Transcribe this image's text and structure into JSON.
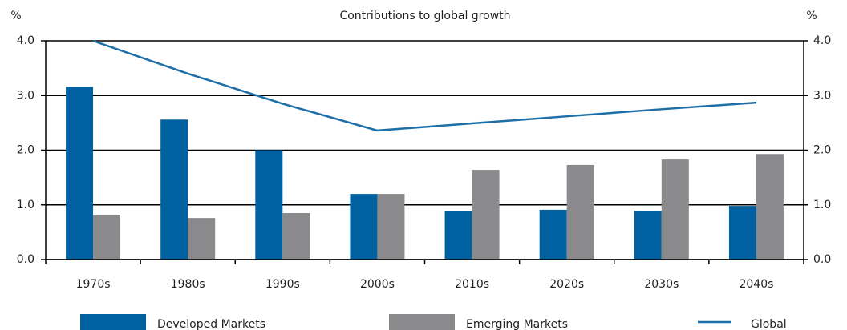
{
  "chart_data": {
    "type": "bar",
    "title": "Contributions to global growth",
    "y_label": "%",
    "y2_label": "%",
    "categories": [
      "1970s",
      "1980s",
      "1990s",
      "2000s",
      "2010s",
      "2020s",
      "2030s",
      "2040s"
    ],
    "series": [
      {
        "name": "Developed Markets",
        "type": "bar",
        "color": "#0060a0",
        "values": [
          3.16,
          2.56,
          2.0,
          1.2,
          0.88,
          0.91,
          0.89,
          0.98
        ]
      },
      {
        "name": "Emerging Markets",
        "type": "bar",
        "color": "#8a8a8c",
        "values": [
          0.82,
          0.76,
          0.85,
          1.2,
          1.64,
          1.73,
          1.83,
          1.93
        ]
      },
      {
        "name": "Global",
        "type": "line",
        "axis": "y2",
        "color": "#1e6fa8",
        "values": [
          4.0,
          3.4,
          2.85,
          2.36,
          2.49,
          2.62,
          2.75,
          2.87
        ]
      }
    ],
    "ylim": [
      0,
      4
    ],
    "yticks": [
      {
        "value": 0,
        "label": "0.0"
      },
      {
        "value": 1,
        "label": "1.0"
      },
      {
        "value": 2,
        "label": "2.0"
      },
      {
        "value": 3,
        "label": "3.0"
      },
      {
        "value": 4,
        "label": "4.0"
      }
    ],
    "y2lim": [
      0,
      4
    ],
    "y2ticks": [
      {
        "value": 0,
        "label": "0.0"
      },
      {
        "value": 1,
        "label": "1.0"
      },
      {
        "value": 2,
        "label": "2.0"
      },
      {
        "value": 3,
        "label": "3.0"
      },
      {
        "value": 4,
        "label": "4.0"
      }
    ],
    "grid": true,
    "legend": "bottom"
  }
}
